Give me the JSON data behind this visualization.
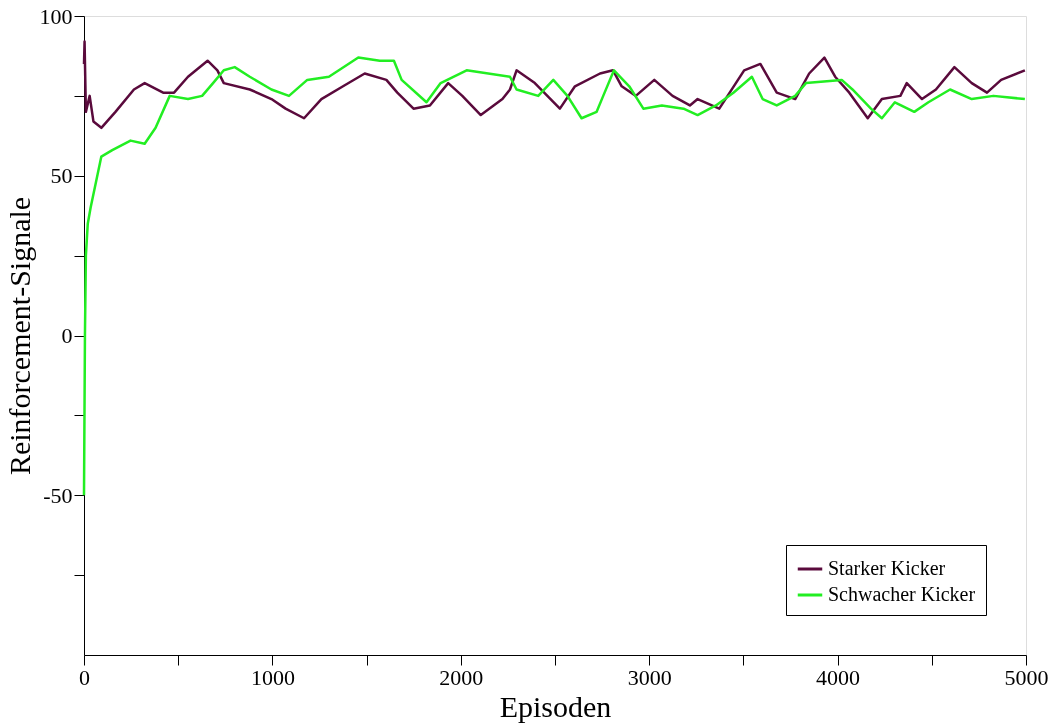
{
  "chart_data": {
    "type": "line",
    "xlabel": "Episoden",
    "ylabel": "Reinforcement-Signale",
    "xlim": [
      0,
      5000
    ],
    "ylim": [
      -100,
      100
    ],
    "xticks": [
      0,
      {
        "value": 500,
        "label": null
      },
      1000,
      {
        "value": 1500,
        "label": null
      },
      2000,
      {
        "value": 2500,
        "label": null
      },
      3000,
      {
        "value": 3500,
        "label": null
      },
      4000,
      {
        "value": 4500,
        "label": null
      },
      5000
    ],
    "yticks": [
      {
        "value": -75,
        "label": null
      },
      -50,
      {
        "value": -25,
        "label": null
      },
      0,
      {
        "value": 25,
        "label": null
      },
      50,
      {
        "value": 75,
        "label": null
      },
      100
    ],
    "grid": false,
    "legend": "bottom right",
    "line_style": "solid",
    "marker": "none",
    "series": [
      {
        "name": "Starker Kicker",
        "color": "#5a0a3c",
        "x": [
          0,
          3,
          10,
          30,
          50,
          92,
          167,
          265,
          322,
          420,
          478,
          552,
          656,
          708,
          742,
          880,
          995,
          1070,
          1168,
          1260,
          1375,
          1490,
          1605,
          1663,
          1749,
          1836,
          1933,
          2008,
          2106,
          2221,
          2261,
          2296,
          2393,
          2526,
          2606,
          2739,
          2808,
          2854,
          2929,
          3027,
          3124,
          3216,
          3257,
          3372,
          3504,
          3590,
          3677,
          3775,
          3849,
          3930,
          3987,
          4062,
          4160,
          4235,
          4333,
          4367,
          4448,
          4522,
          4620,
          4712,
          4793,
          4868,
          4994
        ],
        "values": [
          85,
          92,
          70,
          75,
          67,
          65,
          70,
          77,
          79,
          76,
          76,
          81,
          86,
          83,
          79,
          77,
          74,
          71,
          68,
          74,
          78,
          82,
          80,
          76,
          71,
          72,
          79,
          75,
          69,
          74,
          77,
          83,
          79,
          71,
          78,
          82,
          83,
          78,
          75,
          80,
          75,
          72,
          74,
          71,
          83,
          85,
          76,
          74,
          82,
          87,
          81,
          76,
          68,
          74,
          75,
          79,
          74,
          77,
          84,
          79,
          76,
          80,
          83
        ]
      },
      {
        "name": "Schwacher Kicker",
        "color": "#22ee22",
        "x": [
          0,
          5,
          10,
          20,
          35,
          92,
          150,
          247,
          322,
          380,
          455,
          552,
          627,
          685,
          742,
          800,
          880,
          995,
          1088,
          1185,
          1300,
          1456,
          1570,
          1645,
          1686,
          1818,
          1893,
          2031,
          2261,
          2296,
          2411,
          2491,
          2566,
          2641,
          2721,
          2756,
          2813,
          2894,
          2969,
          3067,
          3182,
          3257,
          3354,
          3447,
          3545,
          3602,
          3677,
          3775,
          3832,
          4022,
          4079,
          4177,
          4235,
          4304,
          4407,
          4482,
          4597,
          4712,
          4827,
          4994
        ],
        "values": [
          -50,
          0,
          25,
          35,
          40,
          56,
          58,
          61,
          60,
          65,
          75,
          74,
          75,
          79,
          83,
          84,
          81,
          77,
          75,
          80,
          81,
          87,
          86,
          86,
          80,
          73,
          79,
          83,
          81,
          77,
          75,
          80,
          75,
          68,
          70,
          75,
          83,
          78,
          71,
          72,
          71,
          69,
          72,
          76,
          81,
          74,
          72,
          75,
          79,
          80,
          77,
          71,
          68,
          73,
          70,
          73,
          77,
          74,
          75,
          74
        ]
      }
    ]
  }
}
